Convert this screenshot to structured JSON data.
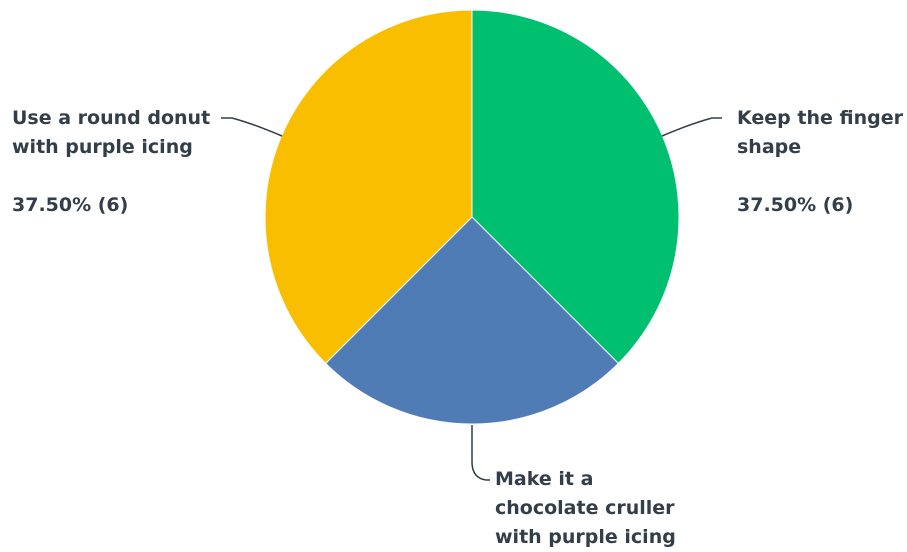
{
  "chart_data": {
    "type": "pie",
    "slices": [
      {
        "label": "Keep the finger shape",
        "label_lines": [
          "Keep the finger",
          "shape"
        ],
        "percent": 37.5,
        "count": 6,
        "value_text": "37.50% (6)",
        "color": "#00bf6f"
      },
      {
        "label": "Make it a chocolate cruller with purple icing",
        "label_lines": [
          "Make it a",
          "chocolate cruller",
          "with purple icing"
        ],
        "percent": 25.0,
        "count": 4,
        "value_text": "",
        "color": "#507cb6"
      },
      {
        "label": "Use a round donut with purple icing",
        "label_lines": [
          "Use a round donut",
          "with purple icing"
        ],
        "percent": 37.5,
        "count": 6,
        "value_text": "37.50% (6)",
        "color": "#f9be00"
      }
    ]
  }
}
